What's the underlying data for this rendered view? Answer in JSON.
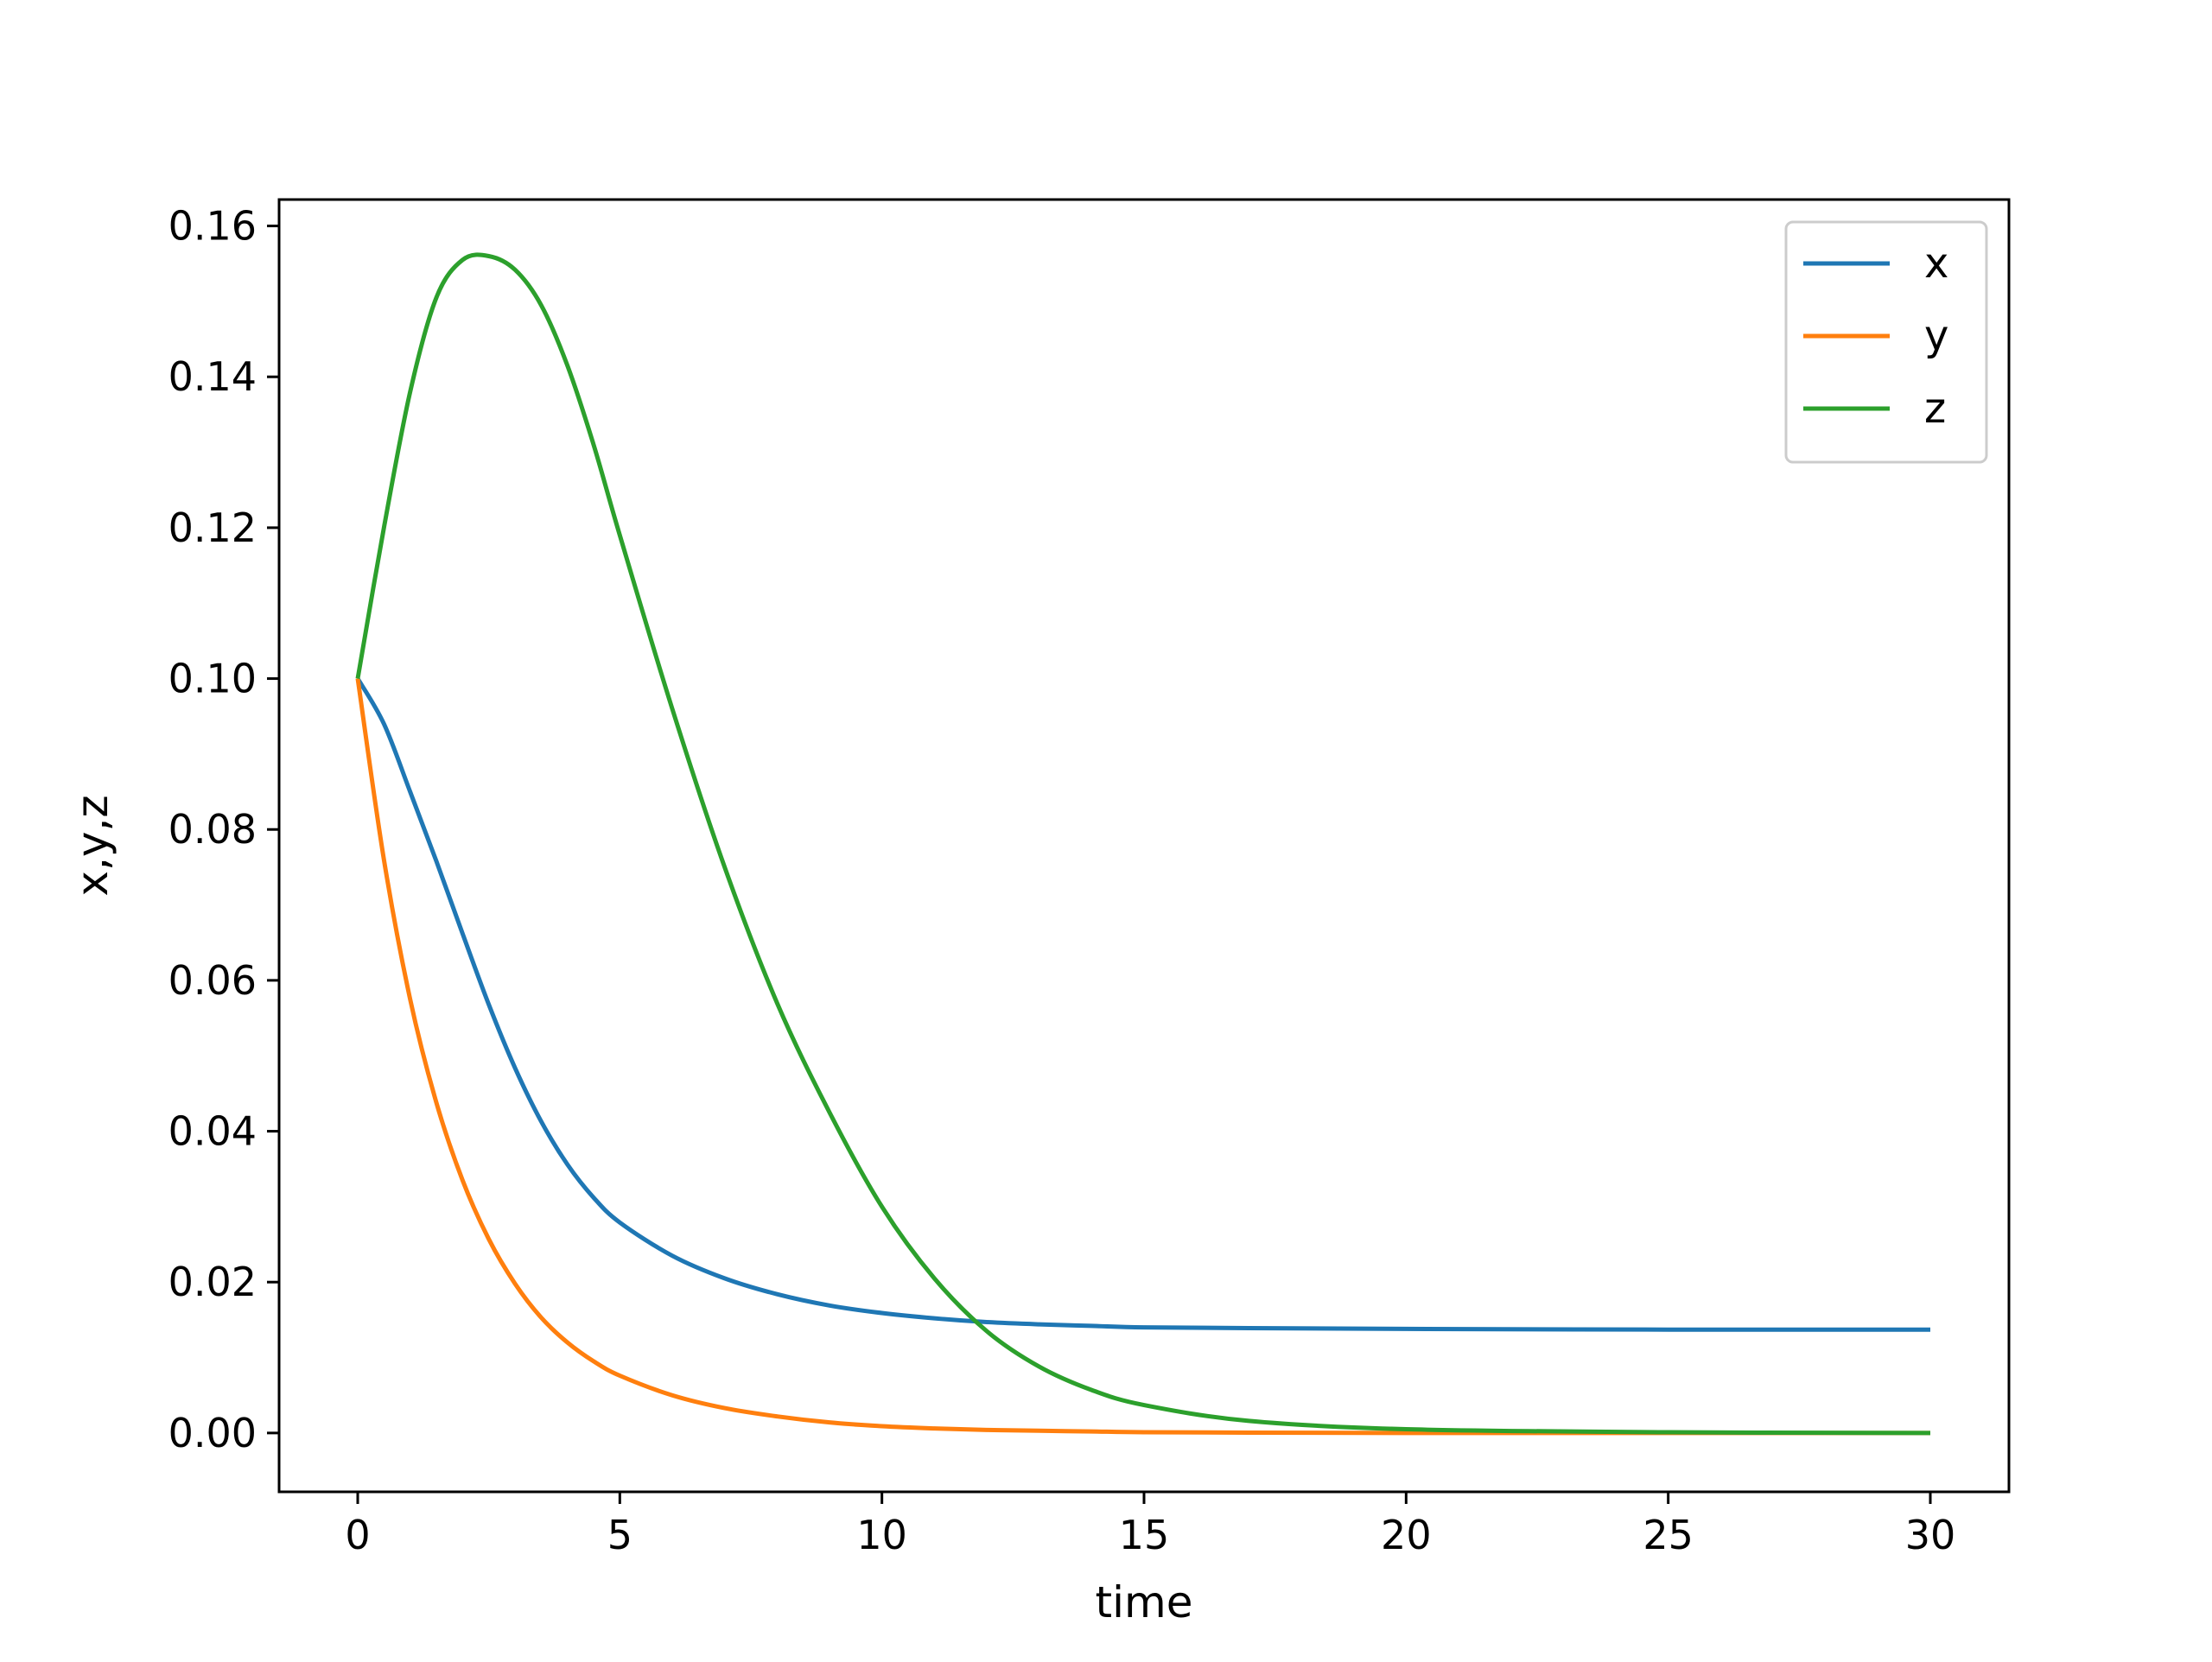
{
  "chart_data": {
    "type": "line",
    "title": "",
    "xlabel": "time",
    "ylabel": "x,y,z",
    "xlim": [
      -1.5,
      31.5
    ],
    "ylim": [
      -0.0078,
      0.1635
    ],
    "xticks": [
      0,
      5,
      10,
      15,
      20,
      25,
      30
    ],
    "xtick_labels": [
      "0",
      "5",
      "10",
      "15",
      "20",
      "25",
      "30"
    ],
    "yticks": [
      0.0,
      0.02,
      0.04,
      0.06,
      0.08,
      0.1,
      0.12,
      0.14,
      0.16
    ],
    "ytick_labels": [
      "0.00",
      "0.02",
      "0.04",
      "0.06",
      "0.08",
      "0.10",
      "0.12",
      "0.14",
      "0.16"
    ],
    "grid": false,
    "legend_position": "top-right",
    "x": [
      0,
      0.5,
      1,
      1.5,
      2,
      2.5,
      3,
      3.5,
      4,
      4.5,
      5,
      6,
      7,
      8,
      9,
      10,
      11,
      12,
      13,
      14,
      15,
      17,
      20,
      25,
      30
    ],
    "series": [
      {
        "name": "x",
        "color": "#1f77b4",
        "values": [
          0.1,
          0.094,
          0.085,
          0.0758,
          0.0662,
          0.0568,
          0.0484,
          0.0413,
          0.0356,
          0.0312,
          0.0279,
          0.0235,
          0.0205,
          0.0184,
          0.0169,
          0.0159,
          0.0152,
          0.0147,
          0.0144,
          0.0142,
          0.014,
          0.0139,
          0.0138,
          0.0137,
          0.0137
        ]
      },
      {
        "name": "y",
        "color": "#ff7f0e",
        "values": [
          0.1,
          0.076,
          0.0575,
          0.0438,
          0.0335,
          0.0257,
          0.0198,
          0.0153,
          0.012,
          0.0095,
          0.0076,
          0.005,
          0.0033,
          0.0022,
          0.0014,
          0.0009,
          0.0006,
          0.0004,
          0.0003,
          0.0002,
          0.0001,
          5e-05,
          0.0,
          0.0,
          0.0
        ]
      },
      {
        "name": "z",
        "color": "#2ca02c",
        "values": [
          0.1,
          0.12,
          0.138,
          0.1505,
          0.1555,
          0.156,
          0.1542,
          0.1495,
          0.1415,
          0.131,
          0.119,
          0.096,
          0.075,
          0.057,
          0.0425,
          0.03,
          0.0205,
          0.0135,
          0.0088,
          0.0057,
          0.0037,
          0.0016,
          0.0005,
          0.0001,
          0.0
        ]
      }
    ]
  }
}
